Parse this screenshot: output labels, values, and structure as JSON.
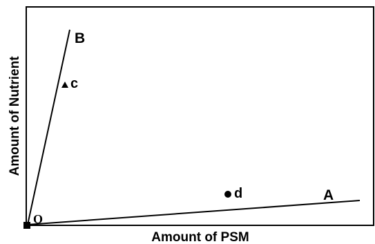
{
  "axes": {
    "x_title": "Amount of PSM",
    "y_title": "Amount of Nutrient"
  },
  "origin": {
    "label": "O"
  },
  "lines": [
    {
      "id": "A",
      "label": "A"
    },
    {
      "id": "B",
      "label": "B"
    }
  ],
  "points": [
    {
      "id": "c",
      "label": "c",
      "marker": "triangle"
    },
    {
      "id": "d",
      "label": "d",
      "marker": "circle"
    }
  ],
  "colors": {
    "stroke": "#000000",
    "background": "#ffffff"
  }
}
